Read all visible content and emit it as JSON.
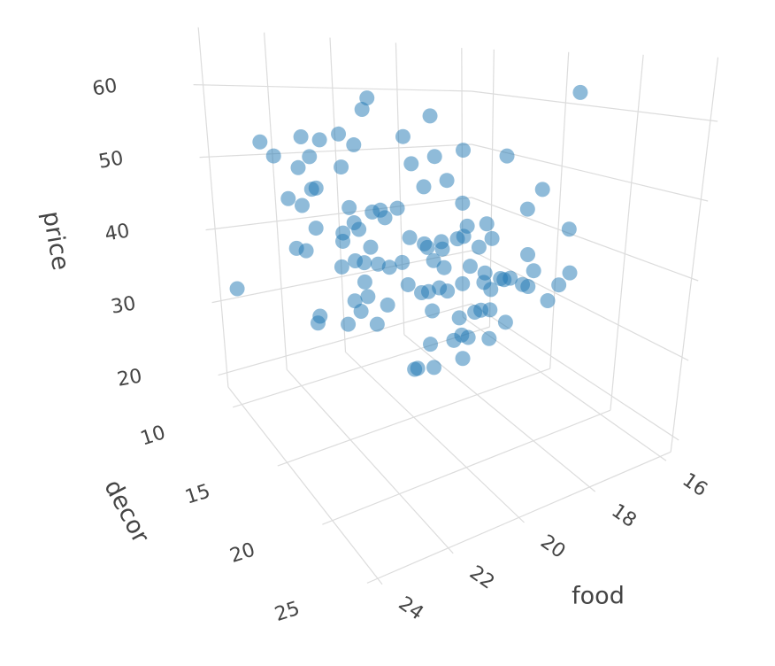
{
  "chart_data": {
    "type": "scatter3d",
    "x_label": "food",
    "y_label": "decor",
    "z_label": "price",
    "color": "#1f77b4",
    "xlim": [
      15.7,
      24.3
    ],
    "ylim": [
      8.5,
      25.5
    ],
    "zlim": [
      18,
      68
    ],
    "xticks": [
      16,
      18,
      20,
      22,
      24
    ],
    "yticks": [
      10,
      15,
      20,
      25
    ],
    "zticks": [
      20,
      30,
      40,
      50,
      60
    ],
    "grid": true,
    "x": [
      23.6,
      23.3,
      22.9,
      22.8,
      23.0,
      23.2,
      23.3,
      21.6,
      18.9,
      17.0,
      21.3,
      18.7,
      18.2,
      22.9,
      23.3,
      22.5,
      23.1,
      22.8,
      22.5,
      23.1,
      23.5,
      22.1,
      21.8,
      21.9,
      20.4,
      21.4,
      21.4,
      21.4,
      21.5,
      18.0,
      18.5,
      18.7,
      18.3,
      18.7,
      16.2,
      16.6,
      17.2,
      16.9,
      16.4,
      15.9,
      16.3,
      17.3,
      18.2,
      18.3,
      18.9,
      16.4,
      17.7,
      18.7,
      19.9,
      20.9,
      18.4,
      19.5,
      18.9,
      19.3,
      21.0,
      18.5,
      19.7,
      21.0,
      22.5,
      20.7,
      21.8,
      22.3,
      22.7,
      23.1,
      23.0,
      23.4,
      20.9,
      21.2,
      23.0,
      21.6,
      21.9,
      21.2,
      21.3,
      21.5,
      19.1,
      19.3,
      19.8,
      20.1,
      20.2,
      17.4,
      17.7,
      21.0,
      22.3,
      21.6,
      21.2,
      21.5,
      21.6,
      20.5,
      21.1,
      19.5,
      19.4,
      19.5,
      17.8,
      22.3,
      21.7,
      22.1,
      22.4,
      18.8,
      19.1,
      18.8,
      19.2,
      18.5,
      19.2,
      19.4,
      19.3
    ],
    "y": [
      9,
      11,
      11,
      13,
      15,
      17,
      19,
      15,
      13,
      19,
      17,
      15,
      17,
      13,
      15,
      11,
      15,
      13,
      13,
      17,
      19,
      15,
      19,
      21,
      13,
      15,
      17,
      19,
      21,
      13,
      15,
      17,
      19,
      21,
      17,
      15,
      17,
      19,
      17,
      15,
      13,
      15,
      17,
      19,
      21,
      13,
      15,
      17,
      19,
      21,
      13,
      15,
      17,
      19,
      21,
      13,
      15,
      17,
      19,
      13,
      15,
      11,
      13,
      15,
      17,
      19,
      13,
      15,
      17,
      13,
      15,
      17,
      19,
      21,
      13,
      15,
      17,
      19,
      21,
      13,
      15,
      17,
      19,
      15,
      13,
      15,
      17,
      13,
      19,
      15,
      17,
      19,
      13,
      13,
      11,
      15,
      17,
      15,
      17,
      13,
      19,
      15,
      13,
      15,
      13
    ],
    "z": [
      32,
      54,
      52,
      56,
      57,
      59,
      63,
      62,
      58,
      63,
      58,
      54,
      54,
      52,
      55,
      46,
      51,
      47,
      49,
      55,
      59,
      48,
      56,
      58,
      45,
      47,
      49,
      53,
      55,
      39,
      43,
      45,
      48,
      52,
      42,
      37,
      37,
      38,
      34,
      29,
      31,
      34,
      37,
      38,
      40,
      24,
      33,
      37,
      42,
      48,
      35,
      39,
      42,
      45,
      52,
      39,
      41,
      45,
      50,
      40,
      45,
      39,
      41,
      46,
      47,
      50,
      38,
      40,
      46,
      38,
      41,
      42,
      46,
      47,
      32,
      35,
      37,
      40,
      43,
      27,
      30,
      39,
      44,
      38,
      33,
      36,
      37,
      29,
      40,
      32,
      33,
      36,
      24,
      32,
      28,
      33,
      37,
      27,
      30,
      24,
      32,
      24,
      21,
      24,
      21
    ]
  }
}
